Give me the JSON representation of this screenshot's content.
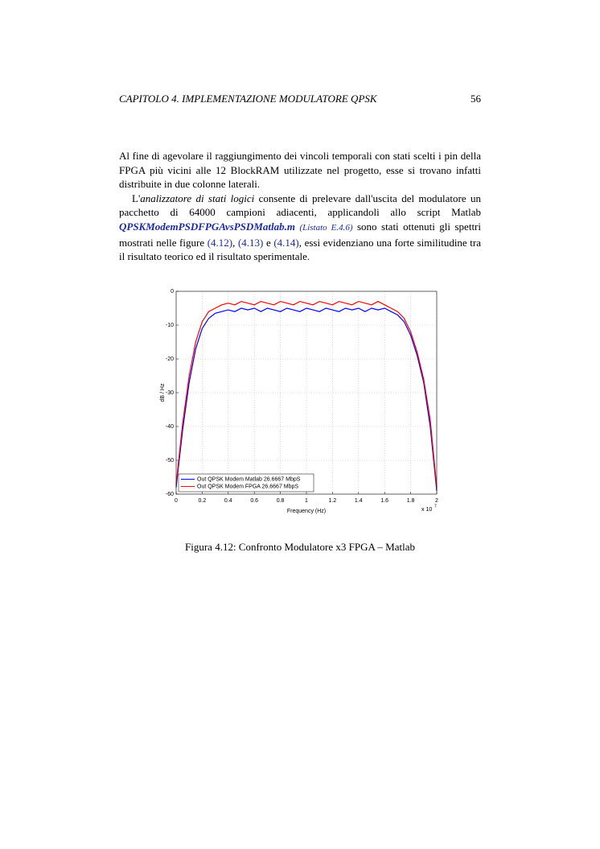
{
  "header": {
    "title": "CAPITOLO 4.  IMPLEMENTAZIONE MODULATORE QPSK",
    "page": "56"
  },
  "paragraphs": {
    "p1": "Al fine di agevolare il raggiungimento dei vincoli temporali con stati scelti i pin della FPGA più vicini alle 12 BlockRAM utilizzate nel progetto, esse si trovano infatti distribuite in due colonne laterali.",
    "p2": {
      "start": "L'",
      "term": "analizzatore di stati logici",
      "middle": "consente di prelevare dall'uscita del modulatore un pacchetto di 64000 campioni adiacenti, applicandoli allo script Matlab",
      "script": "QPSKModemPSDFPGAvsPSDMatlab.m",
      "listing": "(Listato E.4.6)",
      "after": "sono stati ottenuti gli spettri mostrati nelle figure",
      "ref1": "(4.12)",
      "sep1": ",",
      "ref2": "(4.13)",
      "sep2": "e",
      "ref3": "(4.14)",
      "end": ", essi evidenziano una forte similitudine tra il risultato teorico ed il risultato sperimentale."
    }
  },
  "caption": "Figura 4.12: Confronto Modulatore x3 FPGA – Matlab",
  "chart_data": {
    "type": "line",
    "x_label": "Frequency (Hz)",
    "y_label": "dB / Hz",
    "x_multiplier": "x 10",
    "x_exponent": "7",
    "x": [
      0,
      0.05,
      0.1,
      0.15,
      0.2,
      0.25,
      0.3,
      0.35,
      0.4,
      0.45,
      0.5,
      0.55,
      0.6,
      0.65,
      0.7,
      0.75,
      0.8,
      0.85,
      0.9,
      0.95,
      1,
      1.05,
      1.1,
      1.15,
      1.2,
      1.25,
      1.3,
      1.35,
      1.4,
      1.45,
      1.5,
      1.55,
      1.6,
      1.65,
      1.7,
      1.75,
      1.8,
      1.85,
      1.9,
      1.95,
      2
    ],
    "series": [
      {
        "name": "Out QPSK Modem Matlab 26.6667 MbpS",
        "color": "#0000ff",
        "values": [
          -58,
          -41,
          -27,
          -17,
          -11,
          -8,
          -6.5,
          -6,
          -5.5,
          -6,
          -5,
          -5.5,
          -5,
          -6,
          -5,
          -5.5,
          -6,
          -5,
          -5.5,
          -6,
          -5,
          -5.5,
          -6,
          -5,
          -5.5,
          -6,
          -5,
          -5.5,
          -5,
          -6,
          -5,
          -5.5,
          -5,
          -6,
          -7,
          -9,
          -13,
          -19,
          -27,
          -40,
          -59
        ]
      },
      {
        "name": "Out QPSK Modem FPGA 26.6667 MbpS",
        "color": "#ff0000",
        "values": [
          -57,
          -39,
          -25,
          -15,
          -9,
          -6,
          -5,
          -4,
          -3.5,
          -4,
          -3,
          -3.5,
          -4,
          -3,
          -3.5,
          -4,
          -3,
          -3.5,
          -4,
          -3,
          -3.5,
          -4,
          -3,
          -3.5,
          -4,
          -3,
          -3.5,
          -4,
          -3,
          -3.5,
          -4,
          -3,
          -4,
          -5,
          -6,
          -8,
          -12,
          -18,
          -26,
          -38,
          -58
        ]
      }
    ],
    "xlim": [
      0,
      2
    ],
    "ylim": [
      -60,
      0
    ],
    "xticks": [
      0,
      0.2,
      0.4,
      0.6,
      0.8,
      1,
      1.2,
      1.4,
      1.6,
      1.8,
      2
    ],
    "yticks": [
      0,
      -10,
      -20,
      -30,
      -40,
      -50,
      -60
    ],
    "grid": true,
    "legend": "lower left"
  }
}
